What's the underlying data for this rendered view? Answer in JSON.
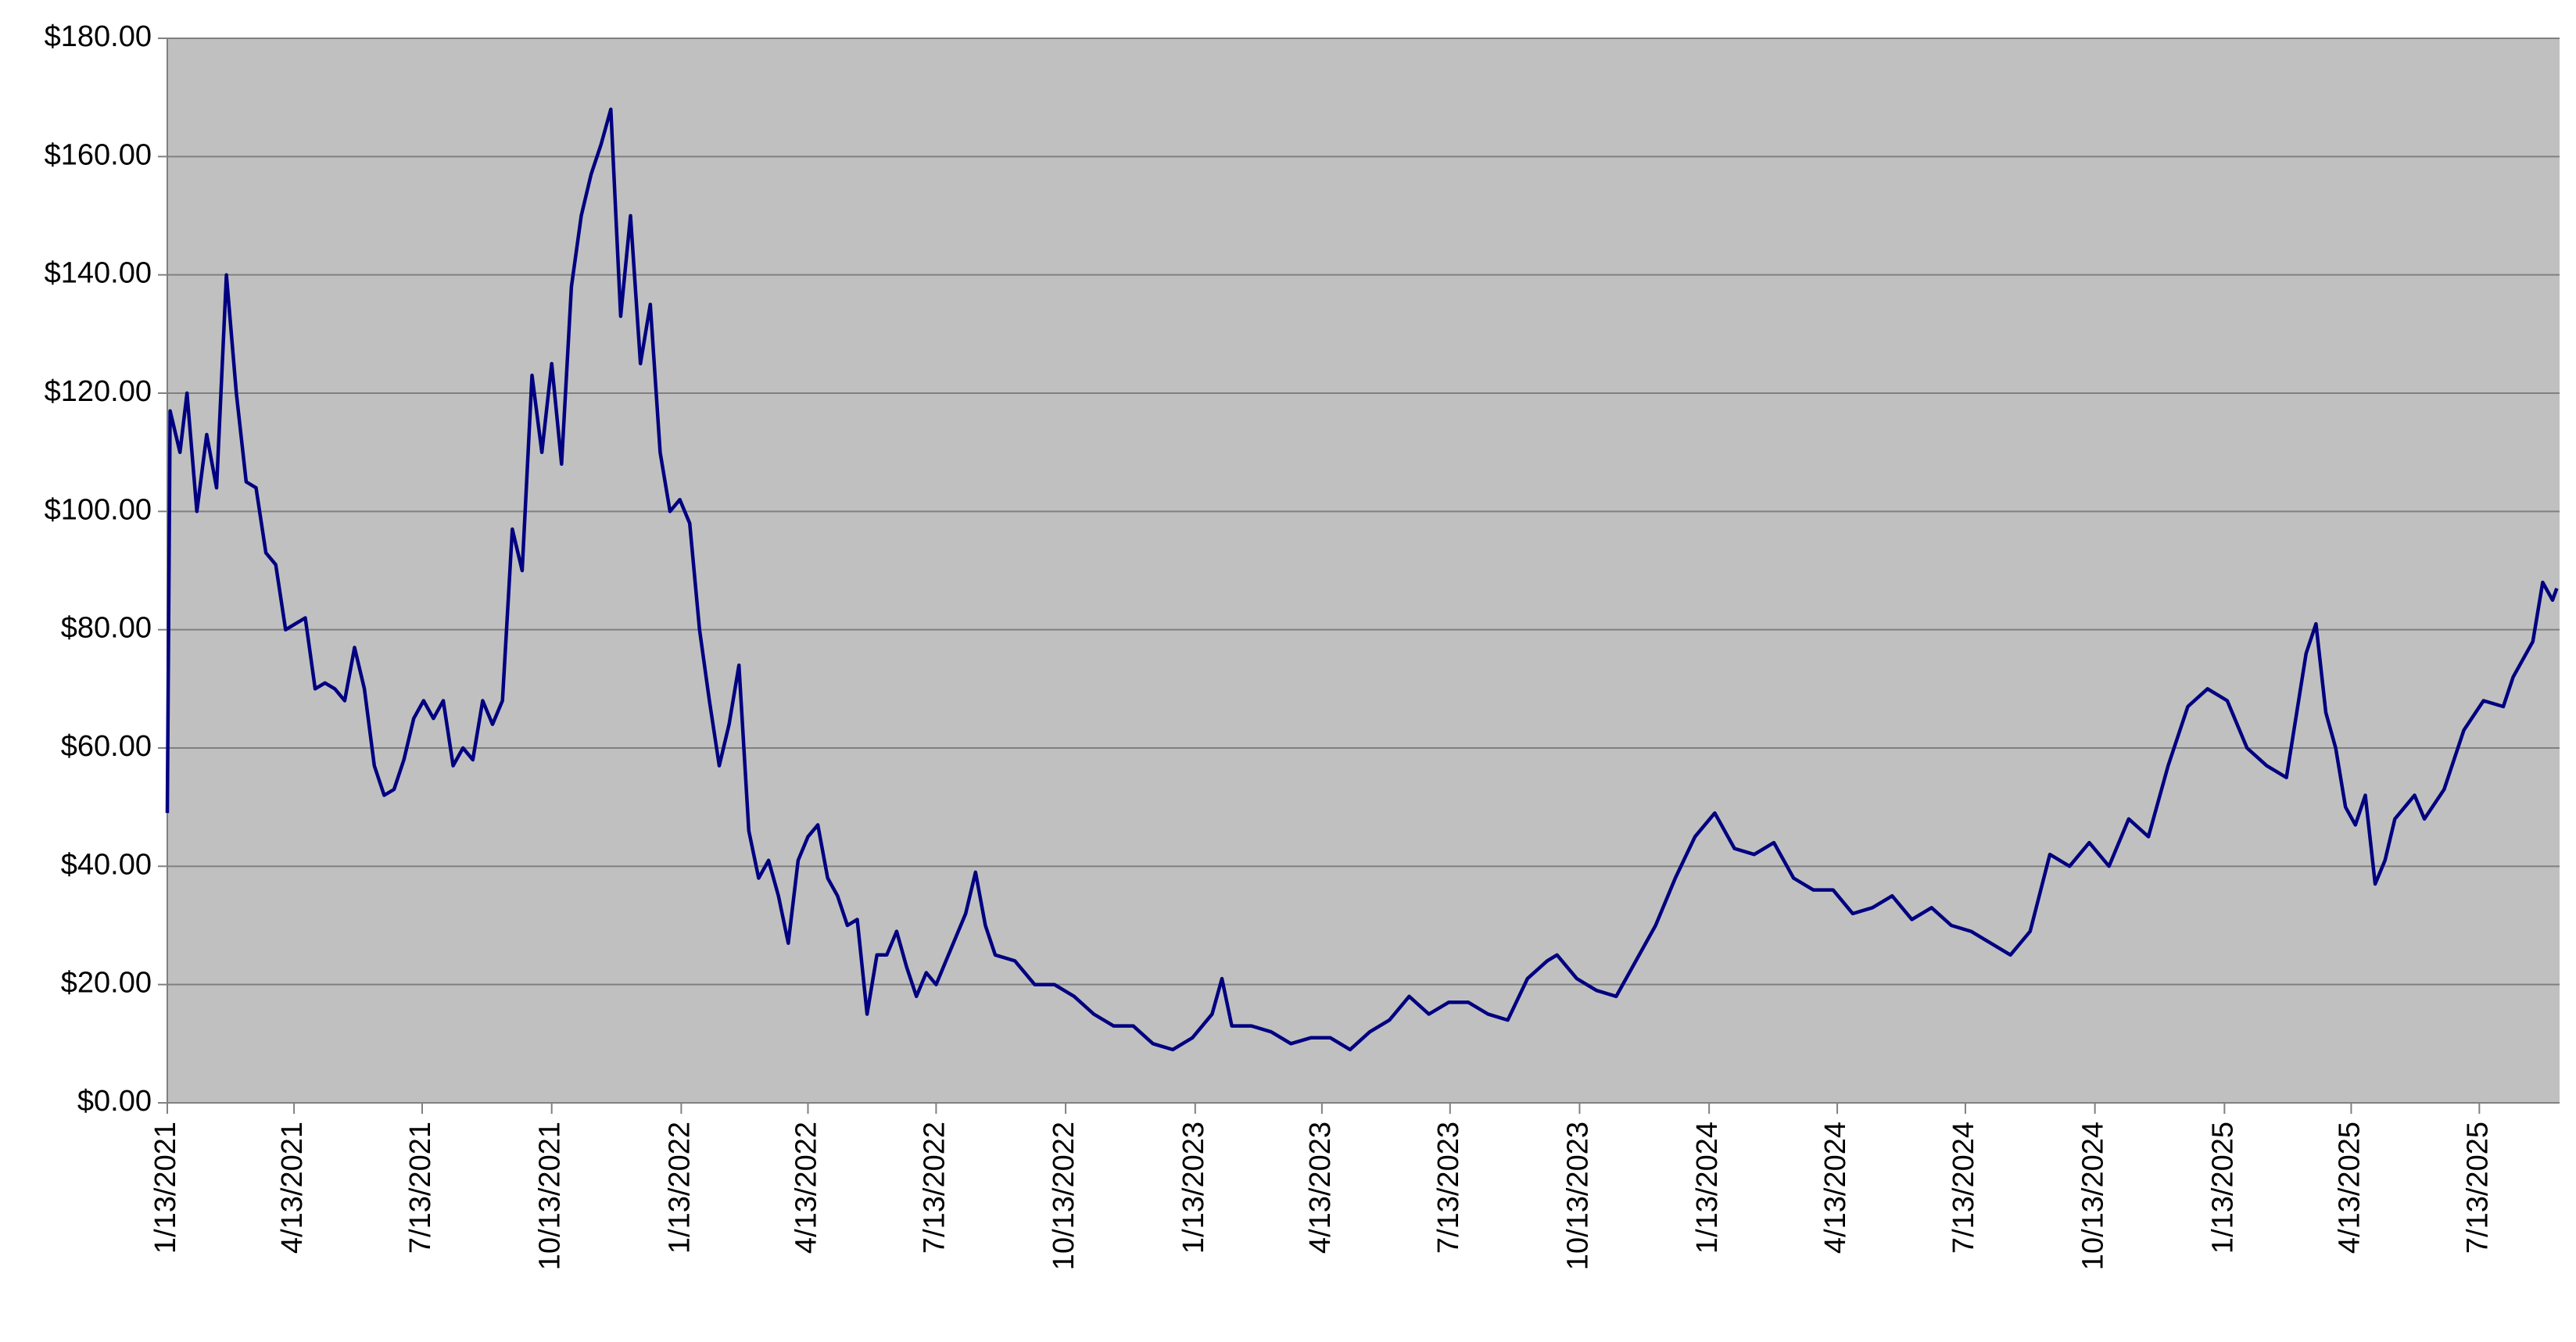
{
  "chart_data": {
    "type": "line",
    "color": "#000080",
    "grid": true,
    "x": [
      "1/13/2021",
      "1/15/2021",
      "1/22/2021",
      "1/27/2021",
      "2/3/2021",
      "2/10/2021",
      "2/17/2021",
      "2/24/2021",
      "3/3/2021",
      "3/10/2021",
      "3/17/2021",
      "3/24/2021",
      "3/31/2021",
      "4/7/2021",
      "4/14/2021",
      "4/21/2021",
      "4/28/2021",
      "5/5/2021",
      "5/12/2021",
      "5/19/2021",
      "5/26/2021",
      "6/2/2021",
      "6/9/2021",
      "6/16/2021",
      "6/23/2021",
      "6/30/2021",
      "7/7/2021",
      "7/14/2021",
      "7/21/2021",
      "7/28/2021",
      "8/4/2021",
      "8/11/2021",
      "8/18/2021",
      "8/25/2021",
      "9/1/2021",
      "9/8/2021",
      "9/15/2021",
      "9/22/2021",
      "9/29/2021",
      "10/6/2021",
      "10/13/2021",
      "10/20/2021",
      "10/27/2021",
      "11/3/2021",
      "11/10/2021",
      "11/17/2021",
      "11/24/2021",
      "12/1/2021",
      "12/8/2021",
      "12/15/2021",
      "12/22/2021",
      "12/29/2021",
      "1/5/2022",
      "1/12/2022",
      "1/19/2022",
      "1/26/2022",
      "2/2/2022",
      "2/9/2022",
      "2/16/2022",
      "2/23/2022",
      "3/2/2022",
      "3/9/2022",
      "3/16/2022",
      "3/23/2022",
      "3/30/2022",
      "4/6/2022",
      "4/13/2022",
      "4/20/2022",
      "4/27/2022",
      "5/4/2022",
      "5/11/2022",
      "5/18/2022",
      "5/25/2022",
      "6/1/2022",
      "6/8/2022",
      "6/15/2022",
      "6/22/2022",
      "6/29/2022",
      "7/6/2022",
      "7/13/2022",
      "7/20/2022",
      "7/27/2022",
      "8/3/2022",
      "8/10/2022",
      "8/17/2022",
      "8/24/2022",
      "9/7/2022",
      "9/21/2022",
      "10/5/2022",
      "10/19/2022",
      "11/2/2022",
      "11/16/2022",
      "11/30/2022",
      "12/14/2022",
      "12/28/2022",
      "1/11/2023",
      "1/25/2023",
      "2/1/2023",
      "2/8/2023",
      "2/22/2023",
      "3/8/2023",
      "3/22/2023",
      "4/5/2023",
      "4/19/2023",
      "5/3/2023",
      "5/17/2023",
      "5/31/2023",
      "6/14/2023",
      "6/28/2023",
      "7/12/2023",
      "7/26/2023",
      "8/9/2023",
      "8/23/2023",
      "9/6/2023",
      "9/20/2023",
      "9/27/2023",
      "10/11/2023",
      "10/25/2023",
      "11/8/2023",
      "11/22/2023",
      "12/6/2023",
      "12/20/2023",
      "1/3/2024",
      "1/17/2024",
      "1/31/2024",
      "2/14/2024",
      "2/28/2024",
      "3/13/2024",
      "3/27/2024",
      "4/10/2024",
      "4/24/2024",
      "5/8/2024",
      "5/22/2024",
      "6/5/2024",
      "6/19/2024",
      "7/3/2024",
      "7/17/2024",
      "7/31/2024",
      "8/14/2024",
      "8/28/2024",
      "9/11/2024",
      "9/25/2024",
      "10/9/2024",
      "10/23/2024",
      "11/6/2024",
      "11/20/2024",
      "12/4/2024",
      "12/18/2024",
      "1/1/2025",
      "1/15/2025",
      "1/29/2025",
      "2/12/2025",
      "2/26/2025",
      "3/12/2025",
      "3/19/2025",
      "3/26/2025",
      "4/2/2025",
      "4/9/2025",
      "4/16/2025",
      "4/23/2025",
      "4/30/2025",
      "5/7/2025",
      "5/14/2025",
      "5/28/2025",
      "6/4/2025",
      "6/18/2025",
      "7/2/2025",
      "7/16/2025",
      "7/30/2025",
      "8/6/2025",
      "8/13/2025",
      "8/20/2025",
      "8/27/2025",
      "9/3/2025",
      "9/6/2025"
    ],
    "values": [
      49,
      117,
      110,
      120,
      100,
      113,
      104,
      140,
      120,
      105,
      104,
      93,
      91,
      80,
      81,
      82,
      70,
      71,
      70,
      68,
      77,
      70,
      57,
      52,
      53,
      58,
      65,
      68,
      65,
      68,
      57,
      60,
      58,
      68,
      64,
      68,
      97,
      90,
      123,
      110,
      125,
      108,
      138,
      150,
      157,
      162,
      168,
      133,
      150,
      125,
      135,
      110,
      100,
      102,
      98,
      80,
      68,
      57,
      64,
      74,
      46,
      38,
      41,
      35,
      27,
      41,
      45,
      47,
      38,
      35,
      30,
      31,
      15,
      25,
      25,
      29,
      23,
      18,
      22,
      20,
      24,
      28,
      32,
      39,
      30,
      25,
      24,
      20,
      20,
      18,
      15,
      13,
      13,
      10,
      9,
      11,
      15,
      21,
      13,
      13,
      12,
      10,
      11,
      11,
      9,
      12,
      14,
      18,
      15,
      17,
      17,
      15,
      14,
      21,
      24,
      25,
      21,
      19,
      18,
      24,
      30,
      38,
      45,
      49,
      43,
      42,
      44,
      38,
      36,
      36,
      32,
      33,
      35,
      31,
      33,
      30,
      29,
      27,
      25,
      29,
      42,
      40,
      44,
      40,
      48,
      45,
      57,
      67,
      70,
      68,
      60,
      57,
      55,
      76,
      81,
      66,
      60,
      50,
      47,
      52,
      37,
      41,
      48,
      52,
      48,
      53,
      63,
      68,
      67,
      72,
      75,
      78,
      88,
      85,
      87
    ],
    "xlim": [
      "1/13/2021",
      "9/8/2025"
    ],
    "xticks": [
      "1/13/2021",
      "4/13/2021",
      "7/13/2021",
      "10/13/2021",
      "1/13/2022",
      "4/13/2022",
      "7/13/2022",
      "10/13/2022",
      "1/13/2023",
      "4/13/2023",
      "7/13/2023",
      "10/13/2023",
      "1/13/2024",
      "4/13/2024",
      "7/13/2024",
      "10/13/2024",
      "1/13/2025",
      "4/13/2025",
      "7/13/2025"
    ],
    "ylim": [
      0,
      180
    ],
    "yticks": [
      {
        "value": 0,
        "label": "$0.00"
      },
      {
        "value": 20,
        "label": "$20.00"
      },
      {
        "value": 40,
        "label": "$40.00"
      },
      {
        "value": 60,
        "label": "$60.00"
      },
      {
        "value": 80,
        "label": "$80.00"
      },
      {
        "value": 100,
        "label": "$100.00"
      },
      {
        "value": 120,
        "label": "$120.00"
      },
      {
        "value": 140,
        "label": "$140.00"
      },
      {
        "value": 160,
        "label": "$160.00"
      },
      {
        "value": 180,
        "label": "$180.00"
      }
    ]
  }
}
